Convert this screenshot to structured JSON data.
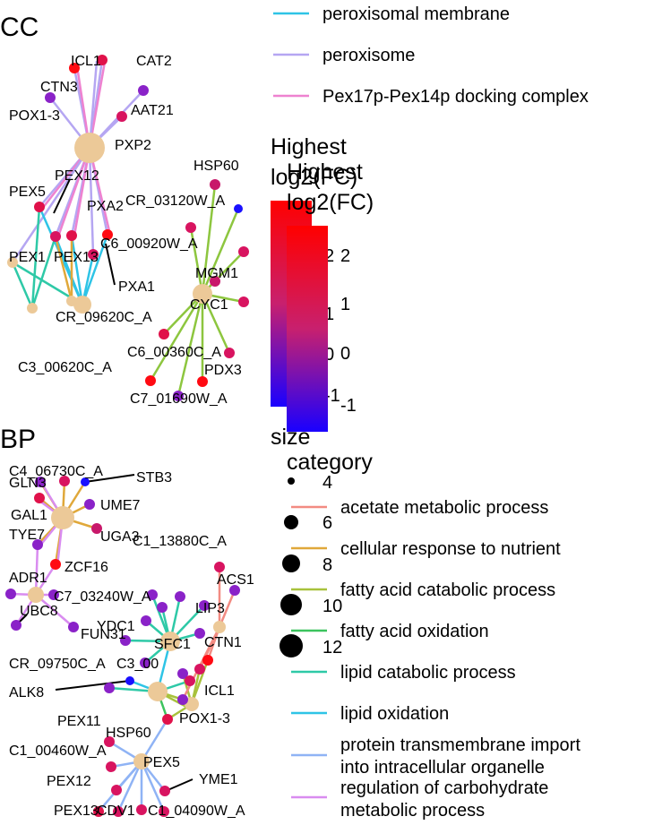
{
  "panels": {
    "cc": "CC",
    "bp": "BP"
  },
  "cc_legend_categories": [
    {
      "label": "peroxisomal membrane",
      "color": "#2ec4e6"
    },
    {
      "label": "peroxisome",
      "color": "#b5a6f2"
    },
    {
      "label": "Pex17p-Pex14p docking complex",
      "color": "#ee82d0"
    }
  ],
  "colorbars": [
    {
      "title_line1": "Highest",
      "title_line2": "log2(FC)",
      "ticks": [
        "2",
        "1",
        "0",
        "-1"
      ]
    },
    {
      "title_line1": "Highest",
      "title_line2": "log2(FC)",
      "ticks": [
        "2",
        "1",
        "0",
        "-1"
      ]
    }
  ],
  "size_legend": {
    "title": "size",
    "values": [
      "4",
      "6",
      "8",
      "10",
      "12"
    ]
  },
  "bp_legend": {
    "title": "category",
    "items": [
      {
        "label": "acetate metabolic process",
        "color": "#f28b82"
      },
      {
        "label": "cellular response to nutrient",
        "color": "#e0a83a"
      },
      {
        "label": "fatty acid catabolic process",
        "color": "#a8c23c"
      },
      {
        "label": "fatty acid oxidation",
        "color": "#3cc35e"
      },
      {
        "label": "lipid catabolic process",
        "color": "#2ec9a7"
      },
      {
        "label": "lipid oxidation",
        "color": "#2ec4e6"
      },
      {
        "label": "protein transmembrane import",
        "label2": "into intracellular organelle",
        "color": "#8fb3f5"
      },
      {
        "label": "regulation of carbohydrate",
        "label2": "metabolic process",
        "color": "#d98cf0"
      }
    ]
  },
  "cc_labels": [
    "ICL1",
    "CAT2",
    "CTN3",
    "AAT21",
    "POX1-3",
    "PXP2",
    "HSP60",
    "PEX12",
    "PEX5",
    "CR_03120W_A",
    "PXA2",
    "C6_00920W_A",
    "PEX1",
    "PEX13",
    "MGM1",
    "PXA1",
    "CYC1",
    "CR_09620C_A",
    "C6_00360C_A",
    "C3_00620C_A",
    "PDX3",
    "C7_01690W_A"
  ],
  "bp_labels": [
    "C4_06730C_A",
    "GLN3",
    "STB3",
    "GAL1",
    "UME7",
    "TYE7",
    "UGA3",
    "C1_13880C_A",
    "ZCF16",
    "ADR1",
    "ACS1",
    "C7_03240W_A",
    "UBC8",
    "LIP3",
    "FUN31",
    "YDC1",
    "SFC1",
    "CTN1",
    "CR_09750C_A",
    "C3_00",
    "ALK8",
    "ICL1",
    "PEX11",
    "POX1-3",
    "HSP60",
    "C1_00460W_A",
    "PEX5",
    "YME1",
    "PEX12",
    "PEX13",
    "C1_04090W_A",
    "CDV1"
  ]
}
